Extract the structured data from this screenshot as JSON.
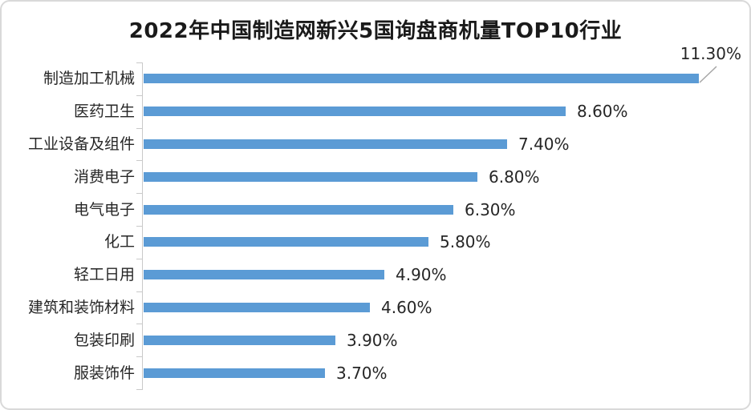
{
  "chart_data": {
    "type": "bar",
    "orientation": "horizontal",
    "title": "2022年中国制造网新兴5国询盘商机量TOP10行业",
    "categories": [
      "制造加工机械",
      "医药卫生",
      "工业设备及组件",
      "消费电子",
      "电气电子",
      "化工",
      "轻工日用",
      "建筑和装饰材料",
      "包装印刷",
      "服装饰件"
    ],
    "values": [
      11.3,
      8.6,
      7.4,
      6.8,
      6.3,
      5.8,
      4.9,
      4.6,
      3.9,
      3.7
    ],
    "value_labels": [
      "11.30%",
      "8.60%",
      "7.40%",
      "6.80%",
      "6.30%",
      "5.80%",
      "4.90%",
      "4.60%",
      "3.90%",
      "3.70%"
    ],
    "xlabel": "",
    "ylabel": "",
    "xlim": [
      0,
      12
    ],
    "grid": false,
    "legend": false,
    "bar_color": "#5b9bd5",
    "axis_color": "#c9c9c9",
    "leader_line_color": "#a6a6a6",
    "text_color": "#262626"
  }
}
